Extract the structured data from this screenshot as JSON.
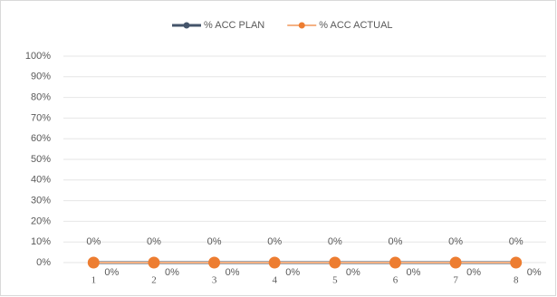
{
  "chart_data": {
    "type": "line",
    "categories": [
      "1",
      "2",
      "3",
      "4",
      "5",
      "6",
      "7",
      "8"
    ],
    "series": [
      {
        "name": "% ACC PLAN",
        "color": "#44546a",
        "values": [
          0,
          0,
          0,
          0,
          0,
          0,
          0,
          0
        ],
        "value_labels": [
          "0%",
          "0%",
          "0%",
          "0%",
          "0%",
          "0%",
          "0%",
          "0%"
        ]
      },
      {
        "name": "% ACC ACTUAL",
        "color": "#f4b183",
        "marker_color": "#ed7d31",
        "values": [
          0,
          0,
          0,
          0,
          0,
          0,
          0,
          0
        ],
        "value_labels": [
          "0%",
          "0%",
          "0%",
          "0%",
          "0%",
          "0%",
          "0%",
          "0%"
        ]
      }
    ],
    "ylim": [
      0,
      100
    ],
    "yticks": [
      {
        "value": 0,
        "label": "0%"
      },
      {
        "value": 10,
        "label": "10%"
      },
      {
        "value": 20,
        "label": "20%"
      },
      {
        "value": 30,
        "label": "30%"
      },
      {
        "value": 40,
        "label": "40%"
      },
      {
        "value": 50,
        "label": "50%"
      },
      {
        "value": 60,
        "label": "60%"
      },
      {
        "value": 70,
        "label": "70%"
      },
      {
        "value": 80,
        "label": "80%"
      },
      {
        "value": 90,
        "label": "90%"
      },
      {
        "value": 100,
        "label": "100%"
      }
    ],
    "grid": true,
    "legend": "top"
  }
}
